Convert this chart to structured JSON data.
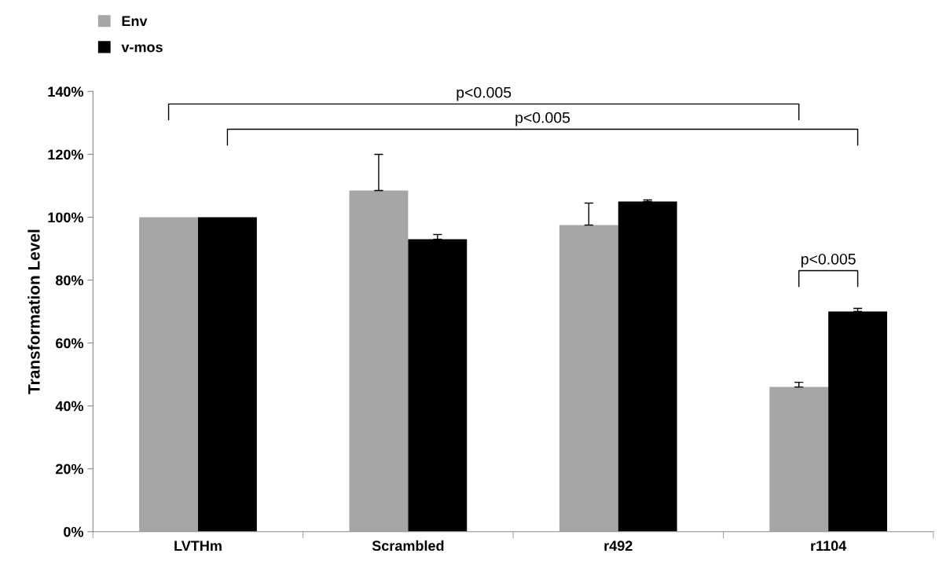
{
  "chart_data": {
    "type": "bar",
    "ylabel": "Transformation Level",
    "categories": [
      "LVTHm",
      "Scrambled",
      "r492",
      "r1104"
    ],
    "series": [
      {
        "name": "Env",
        "color": "#a6a6a6",
        "values": [
          100,
          108.5,
          97.5,
          46
        ],
        "errors": [
          null,
          [
            108.5,
            120
          ],
          [
            97.5,
            104.5
          ],
          [
            46,
            47.5
          ]
        ]
      },
      {
        "name": "v-mos",
        "color": "#000000",
        "values": [
          100,
          93,
          105,
          70
        ],
        "errors": [
          null,
          [
            93,
            94.5
          ],
          [
            105,
            105.5
          ],
          [
            70,
            71
          ]
        ]
      }
    ],
    "ylim": [
      0,
      140
    ],
    "yticks": [
      {
        "value": 0,
        "label": "0%"
      },
      {
        "value": 20,
        "label": "20%"
      },
      {
        "value": 40,
        "label": "40%"
      },
      {
        "value": 60,
        "label": "60%"
      },
      {
        "value": 80,
        "label": "80%"
      },
      {
        "value": 100,
        "label": "100%"
      },
      {
        "value": 120,
        "label": "120%"
      },
      {
        "value": 140,
        "label": "140%"
      }
    ],
    "annotations": [
      "p<0.005",
      "p<0.005",
      "p<0.005"
    ],
    "legend": "top left",
    "grid": false
  }
}
